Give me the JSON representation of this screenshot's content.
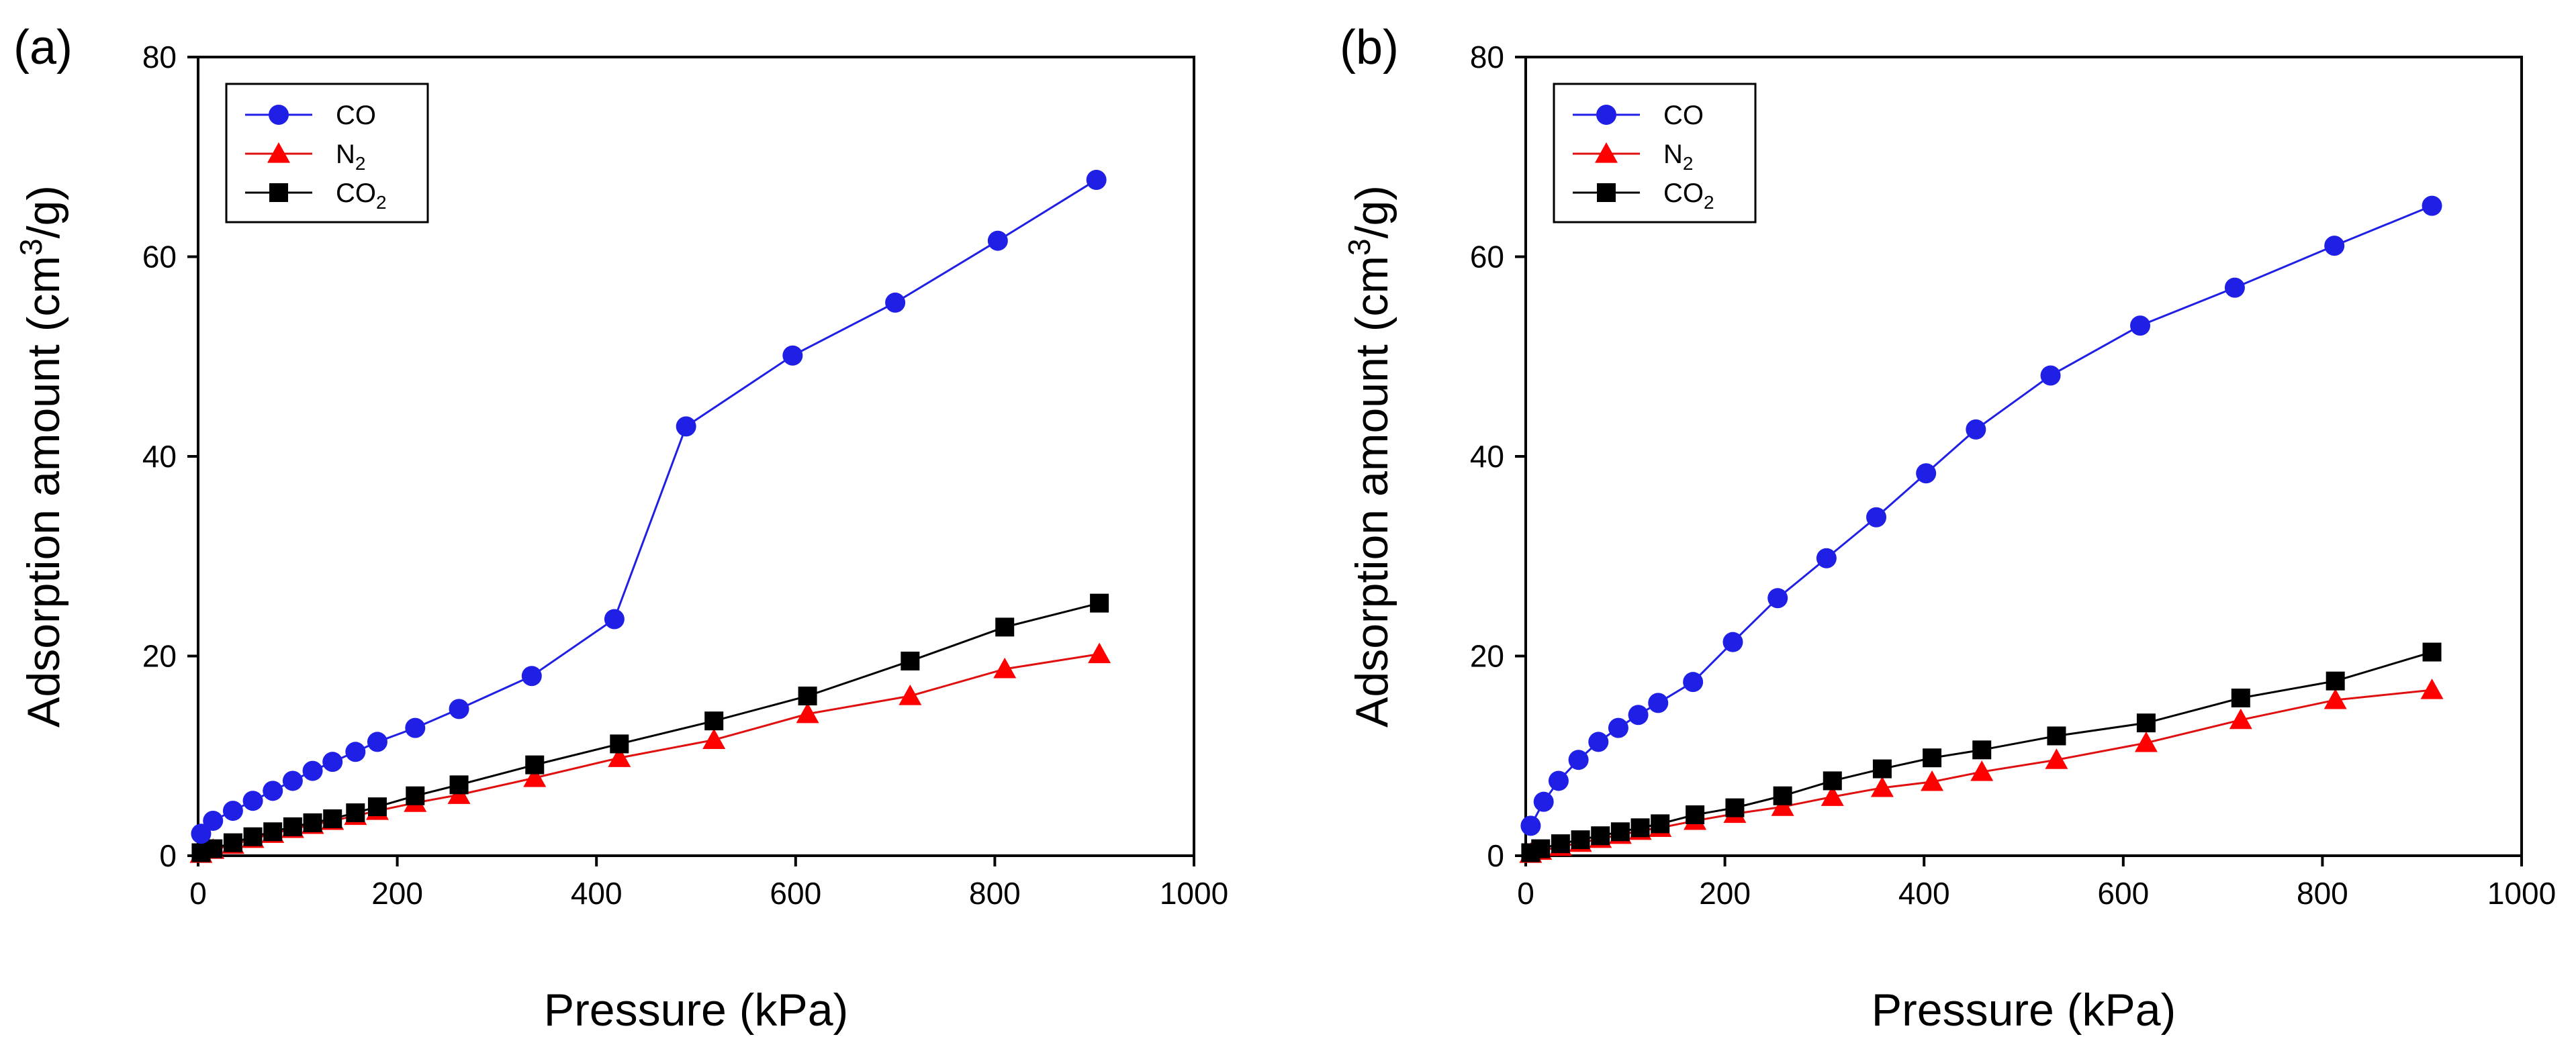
{
  "chart_data": [
    {
      "panel_label": "(a)",
      "type": "line",
      "xlabel": "Pressure (kPa)",
      "ylabel": {
        "base": "Adsorption amount (cm",
        "sup": "3",
        "tail": "/g)"
      },
      "xlim": [
        0,
        1000
      ],
      "ylim": [
        0,
        80
      ],
      "xticks": [
        0,
        200,
        400,
        600,
        800,
        1000
      ],
      "yticks": [
        0,
        20,
        40,
        60,
        80
      ],
      "legend_position": "top-left",
      "series": [
        {
          "name": "CO",
          "name_main": "CO",
          "name_sub": "",
          "marker": "circle",
          "color": "#1f1fe6",
          "marker_color": "#1f1fe6",
          "x": [
            3,
            15,
            35,
            55,
            75,
            95,
            115,
            135,
            158,
            180,
            218,
            262,
            335,
            418,
            490,
            597,
            700,
            803,
            902
          ],
          "y": [
            2.2,
            3.5,
            4.5,
            5.5,
            6.5,
            7.5,
            8.5,
            9.4,
            10.4,
            11.4,
            12.8,
            14.7,
            18.0,
            23.7,
            43.0,
            50.1,
            55.4,
            61.6,
            67.7
          ]
        },
        {
          "name": "N2",
          "name_main": "N",
          "name_sub": "2",
          "marker": "triangle",
          "color": "#e01010",
          "marker_color": "#ff0000",
          "x": [
            3,
            15,
            35,
            55,
            75,
            95,
            115,
            135,
            158,
            180,
            218,
            262,
            338,
            423,
            518,
            612,
            715,
            810,
            905
          ],
          "y": [
            0.2,
            0.6,
            1.1,
            1.7,
            2.2,
            2.7,
            3.1,
            3.5,
            4.0,
            4.5,
            5.3,
            6.1,
            7.8,
            9.8,
            11.6,
            14.2,
            16.0,
            18.7,
            20.2
          ]
        },
        {
          "name": "CO2",
          "name_main": "CO",
          "name_sub": "2",
          "marker": "square",
          "color": "#000000",
          "marker_color": "#000000",
          "x": [
            3,
            15,
            35,
            55,
            75,
            95,
            115,
            135,
            158,
            180,
            218,
            262,
            338,
            423,
            518,
            612,
            715,
            810,
            905
          ],
          "y": [
            0.3,
            0.7,
            1.3,
            1.9,
            2.4,
            2.9,
            3.3,
            3.7,
            4.3,
            4.9,
            6.0,
            7.1,
            9.1,
            11.2,
            13.5,
            16.0,
            19.5,
            22.9,
            25.3
          ]
        }
      ]
    },
    {
      "panel_label": "(b)",
      "type": "line",
      "xlabel": "Pressure (kPa)",
      "ylabel": {
        "base": "Adsorption amount (cm",
        "sup": "3",
        "tail": "/g)"
      },
      "xlim": [
        0,
        1000
      ],
      "ylim": [
        0,
        80
      ],
      "xticks": [
        0,
        200,
        400,
        600,
        800,
        1000
      ],
      "yticks": [
        0,
        20,
        40,
        60,
        80
      ],
      "legend_position": "top-left",
      "series": [
        {
          "name": "CO",
          "name_main": "CO",
          "name_sub": "",
          "marker": "circle",
          "color": "#1f1fe6",
          "marker_color": "#1f1fe6",
          "x": [
            5,
            18,
            33,
            53,
            73,
            93,
            113,
            133,
            168,
            208,
            253,
            302,
            352,
            402,
            452,
            527,
            617,
            712,
            812,
            910
          ],
          "y": [
            3.0,
            5.4,
            7.5,
            9.6,
            11.4,
            12.8,
            14.1,
            15.3,
            17.4,
            21.4,
            25.8,
            29.8,
            33.9,
            38.3,
            42.7,
            48.1,
            53.1,
            56.9,
            61.1,
            65.1
          ]
        },
        {
          "name": "N2",
          "name_main": "N",
          "name_sub": "2",
          "marker": "triangle",
          "color": "#e01010",
          "marker_color": "#ff0000",
          "x": [
            5,
            15,
            35,
            55,
            75,
            95,
            115,
            135,
            170,
            210,
            258,
            308,
            358,
            408,
            458,
            533,
            623,
            718,
            813,
            910
          ],
          "y": [
            0.2,
            0.5,
            0.9,
            1.3,
            1.7,
            2.1,
            2.5,
            2.8,
            3.5,
            4.2,
            4.9,
            5.9,
            6.8,
            7.4,
            8.4,
            9.6,
            11.3,
            13.6,
            15.6,
            16.6
          ]
        },
        {
          "name": "CO2",
          "name_main": "CO",
          "name_sub": "2",
          "marker": "square",
          "color": "#000000",
          "marker_color": "#000000",
          "x": [
            5,
            15,
            35,
            55,
            75,
            95,
            115,
            135,
            170,
            210,
            258,
            308,
            358,
            408,
            458,
            533,
            623,
            718,
            813,
            910
          ],
          "y": [
            0.3,
            0.7,
            1.2,
            1.6,
            2.0,
            2.4,
            2.8,
            3.2,
            4.1,
            4.8,
            6.0,
            7.5,
            8.7,
            9.8,
            10.6,
            12.0,
            13.3,
            15.8,
            17.5,
            20.4
          ]
        }
      ]
    }
  ]
}
